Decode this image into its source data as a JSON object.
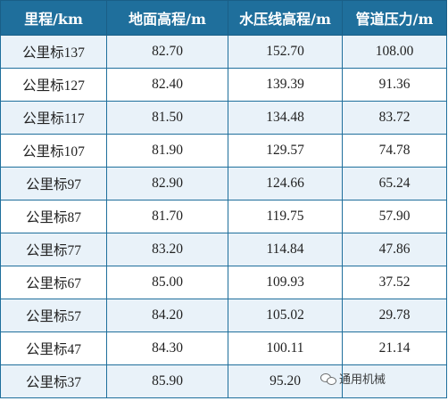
{
  "table": {
    "headers": [
      "里程/km",
      "地面高程/m",
      "水压线高程/m",
      "管道压力/m"
    ],
    "rows": [
      [
        "公里标137",
        "82.70",
        "152.70",
        "108.00"
      ],
      [
        "公里标127",
        "82.40",
        "139.39",
        "91.36"
      ],
      [
        "公里标117",
        "81.50",
        "134.48",
        "83.72"
      ],
      [
        "公里标107",
        "81.90",
        "129.57",
        "74.78"
      ],
      [
        "公里标97",
        "82.90",
        "124.66",
        "65.24"
      ],
      [
        "公里标87",
        "81.70",
        "119.75",
        "57.90"
      ],
      [
        "公里标77",
        "83.20",
        "114.84",
        "47.86"
      ],
      [
        "公里标67",
        "85.00",
        "109.93",
        "37.52"
      ],
      [
        "公里标57",
        "84.20",
        "105.02",
        "29.78"
      ],
      [
        "公里标47",
        "84.30",
        "100.11",
        "21.14"
      ],
      [
        "公里标37",
        "85.90",
        "95.20",
        ""
      ]
    ]
  },
  "watermark": {
    "text": "通用机械",
    "icon": "wechat-icon"
  }
}
